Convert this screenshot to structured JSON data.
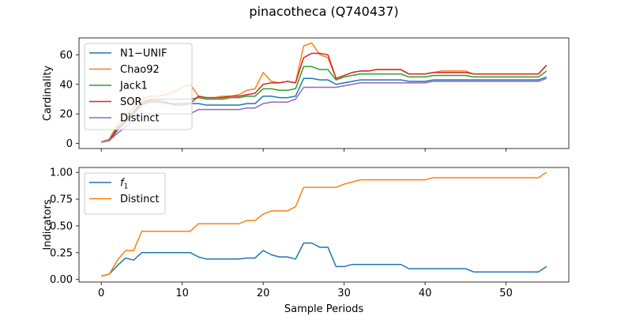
{
  "figure_title": "pinacotheca (Q740437)",
  "colors": {
    "blue": "#1f77b4",
    "orange": "#ff7f0e",
    "green": "#2ca02c",
    "red": "#d62728",
    "purple": "#9467bd"
  },
  "chart_data": [
    {
      "type": "line",
      "ylabel": "Cardinality",
      "xlabel": "",
      "xlim": [
        -2.75,
        57.75
      ],
      "ylim": [
        -3.4,
        71.4
      ],
      "xticks": [
        0,
        10,
        20,
        30,
        40,
        50
      ],
      "xtick_labels": [
        "",
        "",
        "",
        "",
        "",
        ""
      ],
      "yticks": [
        0,
        20,
        40,
        60
      ],
      "ytick_labels": [
        "0",
        "20",
        "40",
        "60"
      ],
      "legend_placement": "upper left",
      "grid": false,
      "x": [
        0,
        1,
        2,
        3,
        4,
        5,
        6,
        7,
        8,
        9,
        10,
        11,
        12,
        13,
        14,
        15,
        16,
        17,
        18,
        19,
        20,
        21,
        22,
        23,
        24,
        25,
        26,
        27,
        28,
        29,
        30,
        31,
        32,
        33,
        34,
        35,
        36,
        37,
        38,
        39,
        40,
        41,
        42,
        43,
        44,
        45,
        46,
        47,
        48,
        49,
        50,
        51,
        52,
        53,
        54,
        55
      ],
      "series": [
        {
          "name": "N1−UNIF",
          "color": "#1f77b4",
          "values": [
            1,
            2,
            9,
            14,
            20,
            26,
            28,
            28,
            27,
            27,
            27,
            27,
            27,
            26,
            26,
            26,
            26,
            26,
            27,
            27,
            32,
            32,
            31,
            31,
            32,
            44,
            44,
            43,
            43,
            40,
            41,
            42,
            43,
            43,
            43,
            43,
            43,
            43,
            42,
            42,
            42,
            43,
            43,
            43,
            43,
            43,
            43,
            43,
            43,
            43,
            43,
            43,
            43,
            43,
            43,
            45
          ]
        },
        {
          "name": "Chao92",
          "color": "#ff7f0e",
          "values": [
            1,
            3,
            13,
            19,
            24,
            30,
            32,
            32,
            33,
            35,
            38,
            40,
            32,
            31,
            31,
            32,
            32,
            33,
            36,
            37,
            48,
            42,
            41,
            42,
            41,
            66,
            68,
            60,
            58,
            44,
            46,
            48,
            49,
            49,
            50,
            50,
            50,
            50,
            47,
            47,
            47,
            48,
            49,
            49,
            49,
            49,
            47,
            47,
            47,
            47,
            47,
            47,
            47,
            47,
            47,
            53
          ]
        },
        {
          "name": "Jack1",
          "color": "#2ca02c",
          "values": [
            1,
            2,
            11,
            16,
            22,
            28,
            30,
            30,
            30,
            30,
            30,
            30,
            31,
            30,
            30,
            30,
            31,
            31,
            32,
            32,
            37,
            37,
            36,
            36,
            37,
            52,
            52,
            50,
            50,
            43,
            45,
            46,
            47,
            47,
            47,
            47,
            47,
            47,
            45,
            45,
            45,
            46,
            46,
            46,
            46,
            46,
            45,
            45,
            45,
            45,
            45,
            45,
            45,
            45,
            45,
            49
          ]
        },
        {
          "name": "SOR",
          "color": "#d62728",
          "values": [
            1,
            2,
            10,
            15,
            21,
            27,
            29,
            29,
            28,
            26,
            26,
            27,
            32,
            31,
            31,
            31,
            32,
            32,
            33,
            34,
            40,
            41,
            41,
            42,
            41,
            58,
            61,
            61,
            60,
            44,
            46,
            48,
            49,
            49,
            50,
            50,
            50,
            50,
            47,
            47,
            47,
            48,
            48,
            48,
            48,
            48,
            47,
            47,
            47,
            47,
            47,
            47,
            47,
            47,
            47,
            53
          ]
        },
        {
          "name": "Distinct",
          "color": "#9467bd",
          "values": [
            1,
            2,
            7,
            11,
            16,
            20,
            20,
            20,
            20,
            20,
            20,
            20,
            23,
            23,
            23,
            23,
            23,
            23,
            24,
            24,
            27,
            28,
            28,
            28,
            30,
            38,
            38,
            38,
            38,
            38,
            39,
            40,
            41,
            41,
            41,
            41,
            41,
            41,
            41,
            41,
            41,
            42,
            42,
            42,
            42,
            42,
            42,
            42,
            42,
            42,
            42,
            42,
            42,
            42,
            42,
            44
          ]
        }
      ]
    },
    {
      "type": "line",
      "ylabel": "Indicators",
      "xlabel": "Sample Periods",
      "xlim": [
        -2.75,
        57.75
      ],
      "ylim": [
        -0.0245,
        1.0455
      ],
      "xticks": [
        0,
        10,
        20,
        30,
        40,
        50
      ],
      "xtick_labels": [
        "0",
        "10",
        "20",
        "30",
        "40",
        "50"
      ],
      "yticks": [
        0,
        0.25,
        0.5,
        0.75,
        1.0
      ],
      "ytick_labels": [
        "0.00",
        "0.25",
        "0.50",
        "0.75",
        "1.00"
      ],
      "legend_placement": "upper left",
      "grid": false,
      "x": [
        0,
        1,
        2,
        3,
        4,
        5,
        6,
        7,
        8,
        9,
        10,
        11,
        12,
        13,
        14,
        15,
        16,
        17,
        18,
        19,
        20,
        21,
        22,
        23,
        24,
        25,
        26,
        27,
        28,
        29,
        30,
        31,
        32,
        33,
        34,
        35,
        36,
        37,
        38,
        39,
        40,
        41,
        42,
        43,
        44,
        45,
        46,
        47,
        48,
        49,
        50,
        51,
        52,
        53,
        54,
        55
      ],
      "series": [
        {
          "name": "f",
          "name_sub": "1",
          "color": "#1f77b4",
          "values": [
            0.03,
            0.05,
            0.13,
            0.2,
            0.18,
            0.25,
            0.25,
            0.25,
            0.25,
            0.25,
            0.25,
            0.25,
            0.21,
            0.19,
            0.19,
            0.19,
            0.19,
            0.19,
            0.2,
            0.2,
            0.27,
            0.23,
            0.21,
            0.21,
            0.19,
            0.34,
            0.34,
            0.3,
            0.3,
            0.12,
            0.12,
            0.14,
            0.14,
            0.14,
            0.14,
            0.14,
            0.14,
            0.14,
            0.1,
            0.1,
            0.1,
            0.1,
            0.1,
            0.1,
            0.1,
            0.1,
            0.07,
            0.07,
            0.07,
            0.07,
            0.07,
            0.07,
            0.07,
            0.07,
            0.07,
            0.12
          ]
        },
        {
          "name": "Distinct",
          "color": "#ff7f0e",
          "values": [
            0.03,
            0.05,
            0.18,
            0.27,
            0.27,
            0.45,
            0.45,
            0.45,
            0.45,
            0.45,
            0.45,
            0.45,
            0.52,
            0.52,
            0.52,
            0.52,
            0.52,
            0.52,
            0.55,
            0.55,
            0.61,
            0.64,
            0.64,
            0.64,
            0.68,
            0.86,
            0.86,
            0.86,
            0.86,
            0.86,
            0.89,
            0.91,
            0.93,
            0.93,
            0.93,
            0.93,
            0.93,
            0.93,
            0.93,
            0.93,
            0.93,
            0.95,
            0.95,
            0.95,
            0.95,
            0.95,
            0.95,
            0.95,
            0.95,
            0.95,
            0.95,
            0.95,
            0.95,
            0.95,
            0.95,
            1.0
          ]
        }
      ]
    }
  ]
}
